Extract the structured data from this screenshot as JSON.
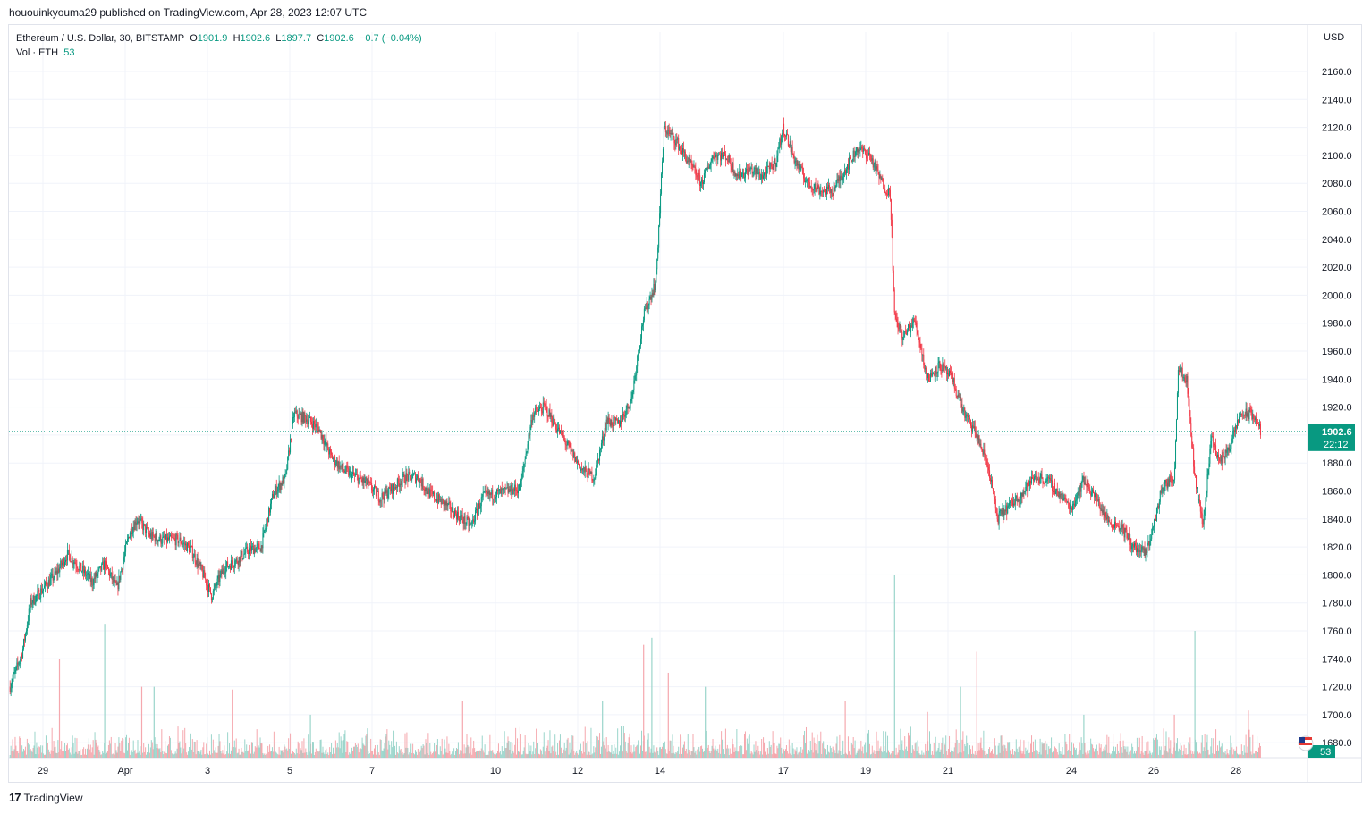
{
  "header": {
    "publisher_text": "hououinkyouma29 published on TradingView.com, Apr 28, 2023 12:07 UTC"
  },
  "legend": {
    "symbol": "Ethereum / U.S. Dollar, 30, BITSTAMP",
    "open_label": "O",
    "open": "1901.9",
    "high_label": "H",
    "high": "1902.6",
    "low_label": "L",
    "low": "1897.7",
    "close_label": "C",
    "close": "1902.6",
    "change": "−0.7 (−0.04%)",
    "vol_label": "Vol · ETH",
    "vol_value": "53"
  },
  "footer": {
    "brand": "TradingView",
    "logo_text": "17"
  },
  "colors": {
    "up": "#089981",
    "down": "#f23645",
    "grid": "#f0f3fa",
    "text": "#131722"
  },
  "chart_data": {
    "type": "candlestick",
    "currency_label": "USD",
    "y_ticks": [
      "2160.0",
      "2140.0",
      "2120.0",
      "2100.0",
      "2080.0",
      "2060.0",
      "2040.0",
      "2020.0",
      "2000.0",
      "1980.0",
      "1960.0",
      "1940.0",
      "1920.0",
      "1900.0",
      "1880.0",
      "1860.0",
      "1840.0",
      "1820.0",
      "1800.0",
      "1780.0",
      "1760.0",
      "1740.0",
      "1720.0",
      "1700.0",
      "1680.0"
    ],
    "ylim": [
      1680,
      2160
    ],
    "x_ticks": [
      {
        "label": "29",
        "day": 0
      },
      {
        "label": "Apr",
        "day": 2
      },
      {
        "label": "3",
        "day": 4
      },
      {
        "label": "5",
        "day": 6
      },
      {
        "label": "7",
        "day": 8
      },
      {
        "label": "10",
        "day": 11
      },
      {
        "label": "12",
        "day": 13
      },
      {
        "label": "14",
        "day": 15
      },
      {
        "label": "17",
        "day": 18
      },
      {
        "label": "19",
        "day": 20
      },
      {
        "label": "21",
        "day": 22
      },
      {
        "label": "24",
        "day": 25
      },
      {
        "label": "26",
        "day": 27
      },
      {
        "label": "28",
        "day": 29
      }
    ],
    "last_price": "1902.6",
    "last_price_value": 1902.6,
    "countdown": "22:12",
    "volume_badge": "53",
    "price_path": [
      [
        -0.8,
        1720
      ],
      [
        -0.5,
        1745
      ],
      [
        -0.3,
        1780
      ],
      [
        0.3,
        1800
      ],
      [
        0.6,
        1815
      ],
      [
        0.9,
        1805
      ],
      [
        1.2,
        1795
      ],
      [
        1.5,
        1808
      ],
      [
        1.8,
        1790
      ],
      [
        2.1,
        1830
      ],
      [
        2.3,
        1840
      ],
      [
        2.6,
        1828
      ],
      [
        2.9,
        1825
      ],
      [
        3.3,
        1825
      ],
      [
        3.6,
        1818
      ],
      [
        3.9,
        1800
      ],
      [
        4.1,
        1785
      ],
      [
        4.4,
        1805
      ],
      [
        4.7,
        1810
      ],
      [
        5.0,
        1818
      ],
      [
        5.3,
        1820
      ],
      [
        5.6,
        1858
      ],
      [
        5.9,
        1870
      ],
      [
        6.1,
        1915
      ],
      [
        6.4,
        1912
      ],
      [
        6.7,
        1905
      ],
      [
        7.0,
        1885
      ],
      [
        7.3,
        1875
      ],
      [
        7.6,
        1870
      ],
      [
        7.9,
        1865
      ],
      [
        8.2,
        1855
      ],
      [
        8.5,
        1862
      ],
      [
        8.8,
        1870
      ],
      [
        9.1,
        1870
      ],
      [
        9.4,
        1858
      ],
      [
        9.8,
        1850
      ],
      [
        10.1,
        1842
      ],
      [
        10.4,
        1835
      ],
      [
        10.7,
        1856
      ],
      [
        11.0,
        1858
      ],
      [
        11.3,
        1860
      ],
      [
        11.6,
        1862
      ],
      [
        11.9,
        1915
      ],
      [
        12.2,
        1920
      ],
      [
        12.5,
        1905
      ],
      [
        12.8,
        1890
      ],
      [
        13.1,
        1875
      ],
      [
        13.4,
        1870
      ],
      [
        13.7,
        1910
      ],
      [
        14.0,
        1908
      ],
      [
        14.3,
        1925
      ],
      [
        14.6,
        1985
      ],
      [
        14.9,
        2010
      ],
      [
        15.1,
        2120
      ],
      [
        15.4,
        2110
      ],
      [
        15.7,
        2095
      ],
      [
        16.0,
        2080
      ],
      [
        16.3,
        2100
      ],
      [
        16.6,
        2100
      ],
      [
        16.9,
        2085
      ],
      [
        17.2,
        2090
      ],
      [
        17.5,
        2085
      ],
      [
        17.8,
        2095
      ],
      [
        18.0,
        2120
      ],
      [
        18.3,
        2095
      ],
      [
        18.6,
        2080
      ],
      [
        18.9,
        2075
      ],
      [
        19.2,
        2075
      ],
      [
        19.5,
        2090
      ],
      [
        19.8,
        2105
      ],
      [
        20.1,
        2100
      ],
      [
        20.4,
        2080
      ],
      [
        20.6,
        2072
      ],
      [
        20.7,
        1985
      ],
      [
        20.9,
        1970
      ],
      [
        21.2,
        1982
      ],
      [
        21.5,
        1940
      ],
      [
        21.8,
        1950
      ],
      [
        22.1,
        1940
      ],
      [
        22.4,
        1915
      ],
      [
        22.7,
        1900
      ],
      [
        23.0,
        1875
      ],
      [
        23.2,
        1840
      ],
      [
        23.5,
        1850
      ],
      [
        23.8,
        1858
      ],
      [
        24.1,
        1870
      ],
      [
        24.4,
        1868
      ],
      [
        24.7,
        1858
      ],
      [
        25.0,
        1848
      ],
      [
        25.3,
        1868
      ],
      [
        25.6,
        1855
      ],
      [
        25.9,
        1838
      ],
      [
        26.2,
        1835
      ],
      [
        26.5,
        1820
      ],
      [
        26.8,
        1815
      ],
      [
        27.0,
        1835
      ],
      [
        27.2,
        1862
      ],
      [
        27.5,
        1870
      ],
      [
        27.6,
        1950
      ],
      [
        27.8,
        1940
      ],
      [
        28.0,
        1870
      ],
      [
        28.2,
        1835
      ],
      [
        28.4,
        1900
      ],
      [
        28.6,
        1880
      ],
      [
        28.9,
        1895
      ],
      [
        29.1,
        1915
      ],
      [
        29.4,
        1915
      ],
      [
        29.6,
        1903
      ]
    ],
    "volume_spikes": [
      [
        0.4,
        1740
      ],
      [
        1.5,
        1765
      ],
      [
        2.4,
        1720
      ],
      [
        2.7,
        1720
      ],
      [
        4.6,
        1718
      ],
      [
        6.5,
        1700
      ],
      [
        10.2,
        1710
      ],
      [
        13.6,
        1710
      ],
      [
        14.6,
        1750
      ],
      [
        14.8,
        1755
      ],
      [
        15.2,
        1730
      ],
      [
        16.1,
        1720
      ],
      [
        19.5,
        1710
      ],
      [
        20.7,
        1800
      ],
      [
        21.5,
        1702
      ],
      [
        22.3,
        1720
      ],
      [
        22.7,
        1745
      ],
      [
        25.3,
        1700
      ],
      [
        27.5,
        1700
      ],
      [
        28.0,
        1760
      ],
      [
        29.3,
        1703
      ]
    ]
  }
}
